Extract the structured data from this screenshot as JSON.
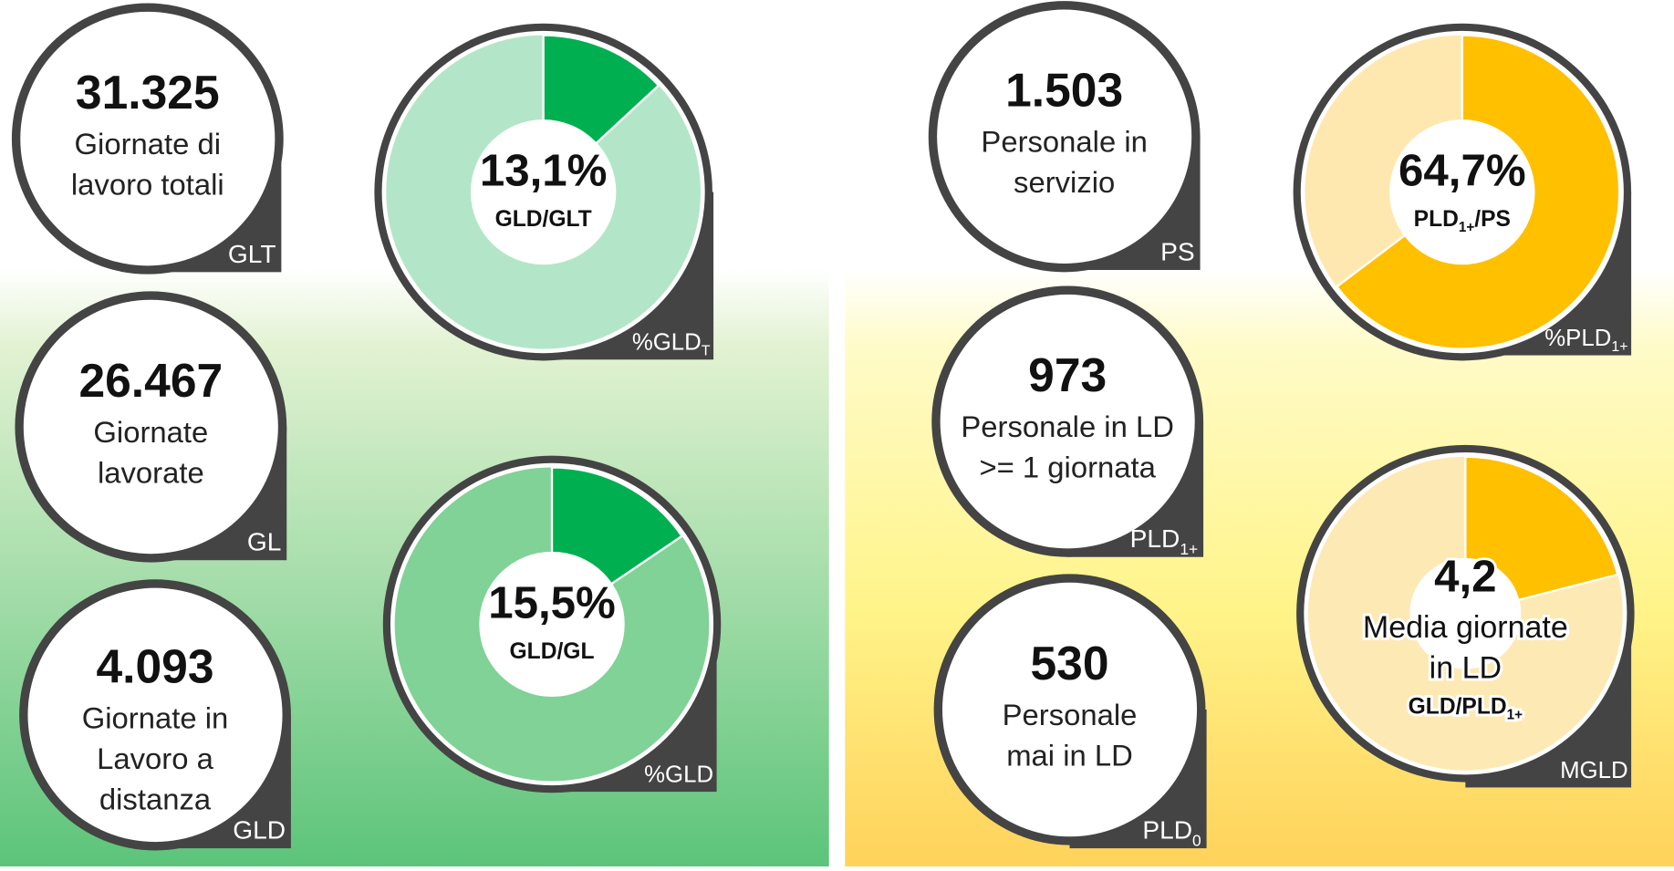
{
  "cards": [
    {
      "value": "31.325",
      "lines": [
        "Giornate di",
        "lavoro totali"
      ],
      "tag": {
        "text": "GLT"
      }
    },
    {
      "value": "26.467",
      "lines": [
        "Giornate",
        "lavorate"
      ],
      "tag": {
        "text": "GL"
      }
    },
    {
      "value": "4.093",
      "lines": [
        "Giornate in",
        "Lavoro a",
        "distanza"
      ],
      "tag": {
        "text": "GLD"
      }
    },
    {
      "value": "1.503",
      "lines": [
        "Personale in",
        "servizio"
      ],
      "tag": {
        "text": "PS"
      }
    },
    {
      "value": "973",
      "lines": [
        "Personale in LD",
        ">= 1 giornata"
      ],
      "tag": {
        "text": "PLD",
        "sub": "1+"
      }
    },
    {
      "value": "530",
      "lines": [
        "Personale",
        "mai in LD"
      ],
      "tag": {
        "text": "PLD",
        "sub": "0"
      }
    }
  ],
  "donuts": [
    {
      "type": "pie",
      "values": [
        13.1
      ],
      "value_labels": [
        "13,1%"
      ],
      "lim": [
        0,
        100
      ],
      "lines": [],
      "ratio": {
        "text": "GLD/GLT"
      },
      "tag": {
        "text": "%GLD",
        "sub": "T"
      },
      "colors": [
        "#00b050",
        "#b3e6c8"
      ]
    },
    {
      "type": "pie",
      "values": [
        15.5
      ],
      "value_labels": [
        "15,5%"
      ],
      "lim": [
        0,
        100
      ],
      "lines": [],
      "ratio": {
        "text": "GLD/GL"
      },
      "tag": {
        "text": "%GLD"
      },
      "colors": [
        "#00b050",
        "#80d296"
      ]
    },
    {
      "type": "pie",
      "values": [
        64.7
      ],
      "value_labels": [
        "64,7%"
      ],
      "lim": [
        0,
        100
      ],
      "lines": [],
      "ratio": {
        "text": "PLD",
        "sub": "1+",
        "after": "/PS"
      },
      "tag": {
        "text": "%PLD",
        "sub": "1+"
      },
      "colors": [
        "#ffc000",
        "#ffe8b0"
      ]
    },
    {
      "type": "pie",
      "values": [
        4.2
      ],
      "value_labels": [
        "4,2"
      ],
      "lim": [
        0,
        20
      ],
      "lines": [
        "Media giornate",
        "in LD"
      ],
      "ratio": {
        "text": "GLD/PLD",
        "sub": "1+"
      },
      "tag": {
        "text": "MGLD"
      },
      "colors": [
        "#ffc000",
        "#fde9b4"
      ]
    }
  ]
}
